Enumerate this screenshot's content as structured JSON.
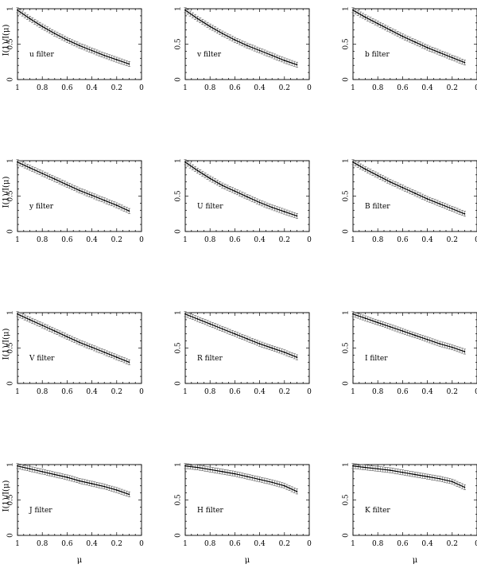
{
  "chart_data": {
    "type": "line",
    "x_axis": {
      "label": "μ",
      "range": [
        1,
        0
      ],
      "ticks": [
        1,
        0.8,
        0.6,
        0.4,
        0.2,
        0
      ],
      "tick_labels": [
        "1",
        "0.8",
        "0.6",
        "0.4",
        "0.2",
        "0"
      ]
    },
    "y_axis": {
      "label": "I(1)/I(μ)",
      "range": [
        0,
        1
      ],
      "ticks": [
        0,
        0.5,
        1
      ],
      "tick_labels": [
        "0",
        "0.5",
        "1"
      ]
    },
    "grid": false,
    "mu": [
      1.0,
      0.9,
      0.8,
      0.7,
      0.6,
      0.5,
      0.4,
      0.3,
      0.2,
      0.1
    ],
    "panels": [
      {
        "label": "u filter",
        "values": [
          0.98,
          0.86,
          0.75,
          0.65,
          0.56,
          0.48,
          0.41,
          0.34,
          0.28,
          0.22
        ]
      },
      {
        "label": "v filter",
        "values": [
          0.98,
          0.86,
          0.75,
          0.65,
          0.56,
          0.48,
          0.41,
          0.34,
          0.27,
          0.21
        ]
      },
      {
        "label": "b filter",
        "values": [
          0.98,
          0.88,
          0.79,
          0.7,
          0.61,
          0.53,
          0.45,
          0.38,
          0.31,
          0.24
        ]
      },
      {
        "label": "y filter",
        "values": [
          0.98,
          0.9,
          0.82,
          0.74,
          0.66,
          0.58,
          0.51,
          0.44,
          0.37,
          0.29
        ]
      },
      {
        "label": "U filter",
        "values": [
          0.98,
          0.86,
          0.75,
          0.65,
          0.57,
          0.49,
          0.41,
          0.34,
          0.28,
          0.22
        ]
      },
      {
        "label": "B filter",
        "values": [
          0.98,
          0.88,
          0.79,
          0.7,
          0.62,
          0.54,
          0.46,
          0.39,
          0.32,
          0.25
        ]
      },
      {
        "label": "V filter",
        "values": [
          0.98,
          0.9,
          0.82,
          0.74,
          0.66,
          0.58,
          0.51,
          0.44,
          0.37,
          0.3
        ]
      },
      {
        "label": "R filter",
        "values": [
          0.98,
          0.91,
          0.84,
          0.77,
          0.7,
          0.63,
          0.56,
          0.5,
          0.44,
          0.37
        ]
      },
      {
        "label": "I filter",
        "values": [
          0.98,
          0.92,
          0.86,
          0.8,
          0.74,
          0.68,
          0.62,
          0.56,
          0.51,
          0.45
        ]
      },
      {
        "label": "J filter",
        "values": [
          0.98,
          0.94,
          0.9,
          0.86,
          0.82,
          0.77,
          0.73,
          0.69,
          0.64,
          0.58
        ]
      },
      {
        "label": "H filter",
        "values": [
          0.98,
          0.96,
          0.93,
          0.9,
          0.87,
          0.83,
          0.79,
          0.75,
          0.7,
          0.62
        ]
      },
      {
        "label": "K filter",
        "values": [
          0.98,
          0.96,
          0.94,
          0.92,
          0.89,
          0.86,
          0.83,
          0.8,
          0.76,
          0.68
        ]
      }
    ]
  }
}
